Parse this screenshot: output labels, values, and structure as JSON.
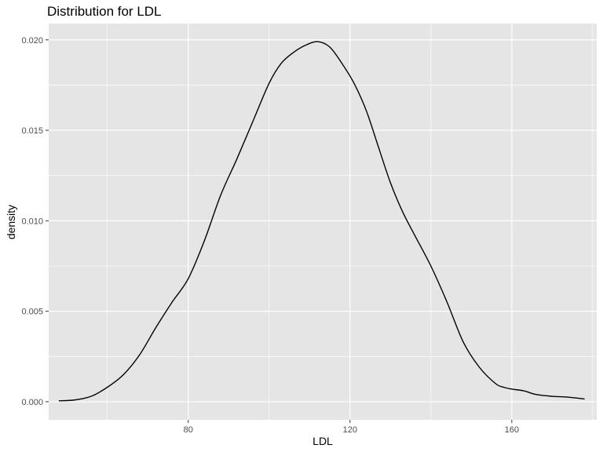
{
  "chart_data": {
    "type": "area",
    "title": "Distribution for LDL",
    "xlabel": "LDL",
    "ylabel": "density",
    "xlim": [
      45.5,
      181
    ],
    "ylim": [
      -0.001,
      0.0209
    ],
    "x_ticks": [
      80,
      120,
      160
    ],
    "x_minor_ticks": [
      60,
      100,
      140,
      180
    ],
    "y_ticks": [
      0.0,
      0.005,
      0.01,
      0.015,
      0.02
    ],
    "y_tick_labels": [
      "0.000",
      "0.005",
      "0.010",
      "0.015",
      "0.020"
    ],
    "grid": true,
    "panel_background": "#e5e5e5",
    "grid_color": "#ffffff",
    "line_color": "#000000",
    "series": [
      {
        "x": [
          48,
          52,
          56,
          60,
          64,
          68,
          72,
          76,
          80,
          84,
          88,
          92,
          96,
          100,
          103,
          106,
          109,
          112,
          115,
          118,
          121,
          124,
          127,
          130,
          133,
          136,
          140,
          144,
          148,
          152,
          156,
          158,
          160,
          163,
          166,
          170,
          174,
          178
        ],
        "y": [
          5e-05,
          0.0001,
          0.0003,
          0.0008,
          0.0015,
          0.0026,
          0.0041,
          0.0055,
          0.0068,
          0.0089,
          0.0114,
          0.0134,
          0.0155,
          0.0176,
          0.0187,
          0.0193,
          0.0197,
          0.0199,
          0.0196,
          0.0187,
          0.0176,
          0.0161,
          0.0141,
          0.0121,
          0.0105,
          0.0092,
          0.0075,
          0.0055,
          0.0033,
          0.0019,
          0.001,
          0.0008,
          0.0007,
          0.0006,
          0.0004,
          0.0003,
          0.00025,
          0.00015
        ]
      }
    ]
  }
}
